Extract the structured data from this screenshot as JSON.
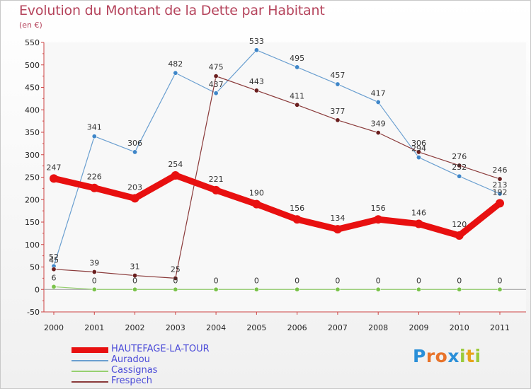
{
  "title": "Evolution du Montant de la Dette par Habitant",
  "subtitle": "(en €)",
  "logo": "Proxiti",
  "chart_data": {
    "type": "line",
    "title": "Evolution du Montant de la Dette par Habitant",
    "subtitle": "(en €)",
    "categories": [
      "2000",
      "2001",
      "2002",
      "2003",
      "2004",
      "2005",
      "2006",
      "2007",
      "2008",
      "2009",
      "2010",
      "2011"
    ],
    "ylim": [
      -50,
      550
    ],
    "yticks": [
      -50,
      0,
      50,
      100,
      150,
      200,
      250,
      300,
      350,
      400,
      450,
      500,
      550
    ],
    "grid": false,
    "legend": "bottom-left",
    "series": [
      {
        "name": "HAUTEFAGE-LA-TOUR",
        "values": [
          247,
          226,
          203,
          254,
          221,
          190,
          156,
          134,
          156,
          146,
          120,
          192
        ],
        "color": "#e81010",
        "width": 9
      },
      {
        "name": "Auradou",
        "values": [
          52,
          341,
          306,
          482,
          437,
          533,
          495,
          457,
          417,
          294,
          252,
          213
        ],
        "color": "#6a9fd0",
        "width": 1.2
      },
      {
        "name": "Cassignas",
        "values": [
          6,
          0,
          0,
          0,
          0,
          0,
          0,
          0,
          0,
          0,
          0,
          0
        ],
        "color": "#96d070",
        "width": 1.2
      },
      {
        "name": "Frespech",
        "values": [
          45,
          39,
          31,
          25,
          475,
          443,
          411,
          377,
          349,
          306,
          276,
          246
        ],
        "color": "#8a3a3a",
        "width": 1.2
      }
    ]
  }
}
